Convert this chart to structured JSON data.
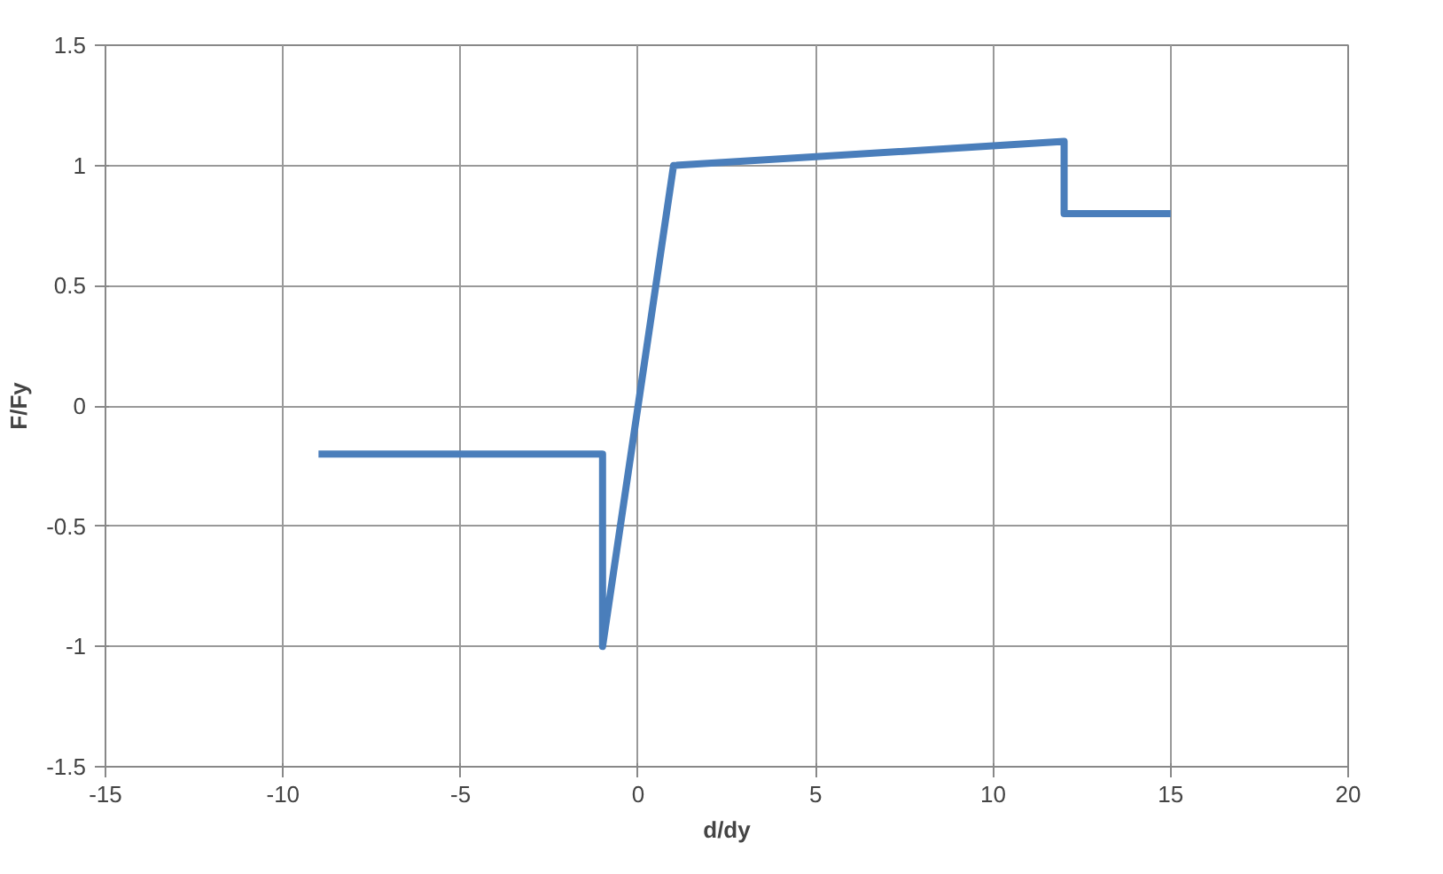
{
  "chart_data": {
    "type": "line",
    "xlabel": "d/dy",
    "ylabel": "F/Fy",
    "x": [
      -9,
      -1,
      -1,
      1,
      12,
      12,
      15
    ],
    "series": [
      {
        "color": "#4a7ebb",
        "values": [
          -0.2,
          -0.2,
          -1,
          1,
          1.1,
          0.8,
          0.8
        ]
      }
    ],
    "xlim": [
      -15,
      20
    ],
    "xticks": [
      -15,
      -10,
      -5,
      0,
      5,
      10,
      15,
      20
    ],
    "ylim": [
      -1.5,
      1.5
    ],
    "yticks": [
      -1.5,
      -1,
      -0.5,
      0,
      0.5,
      1,
      1.5
    ],
    "grid": true,
    "marker": "none",
    "line_style": "solid"
  }
}
